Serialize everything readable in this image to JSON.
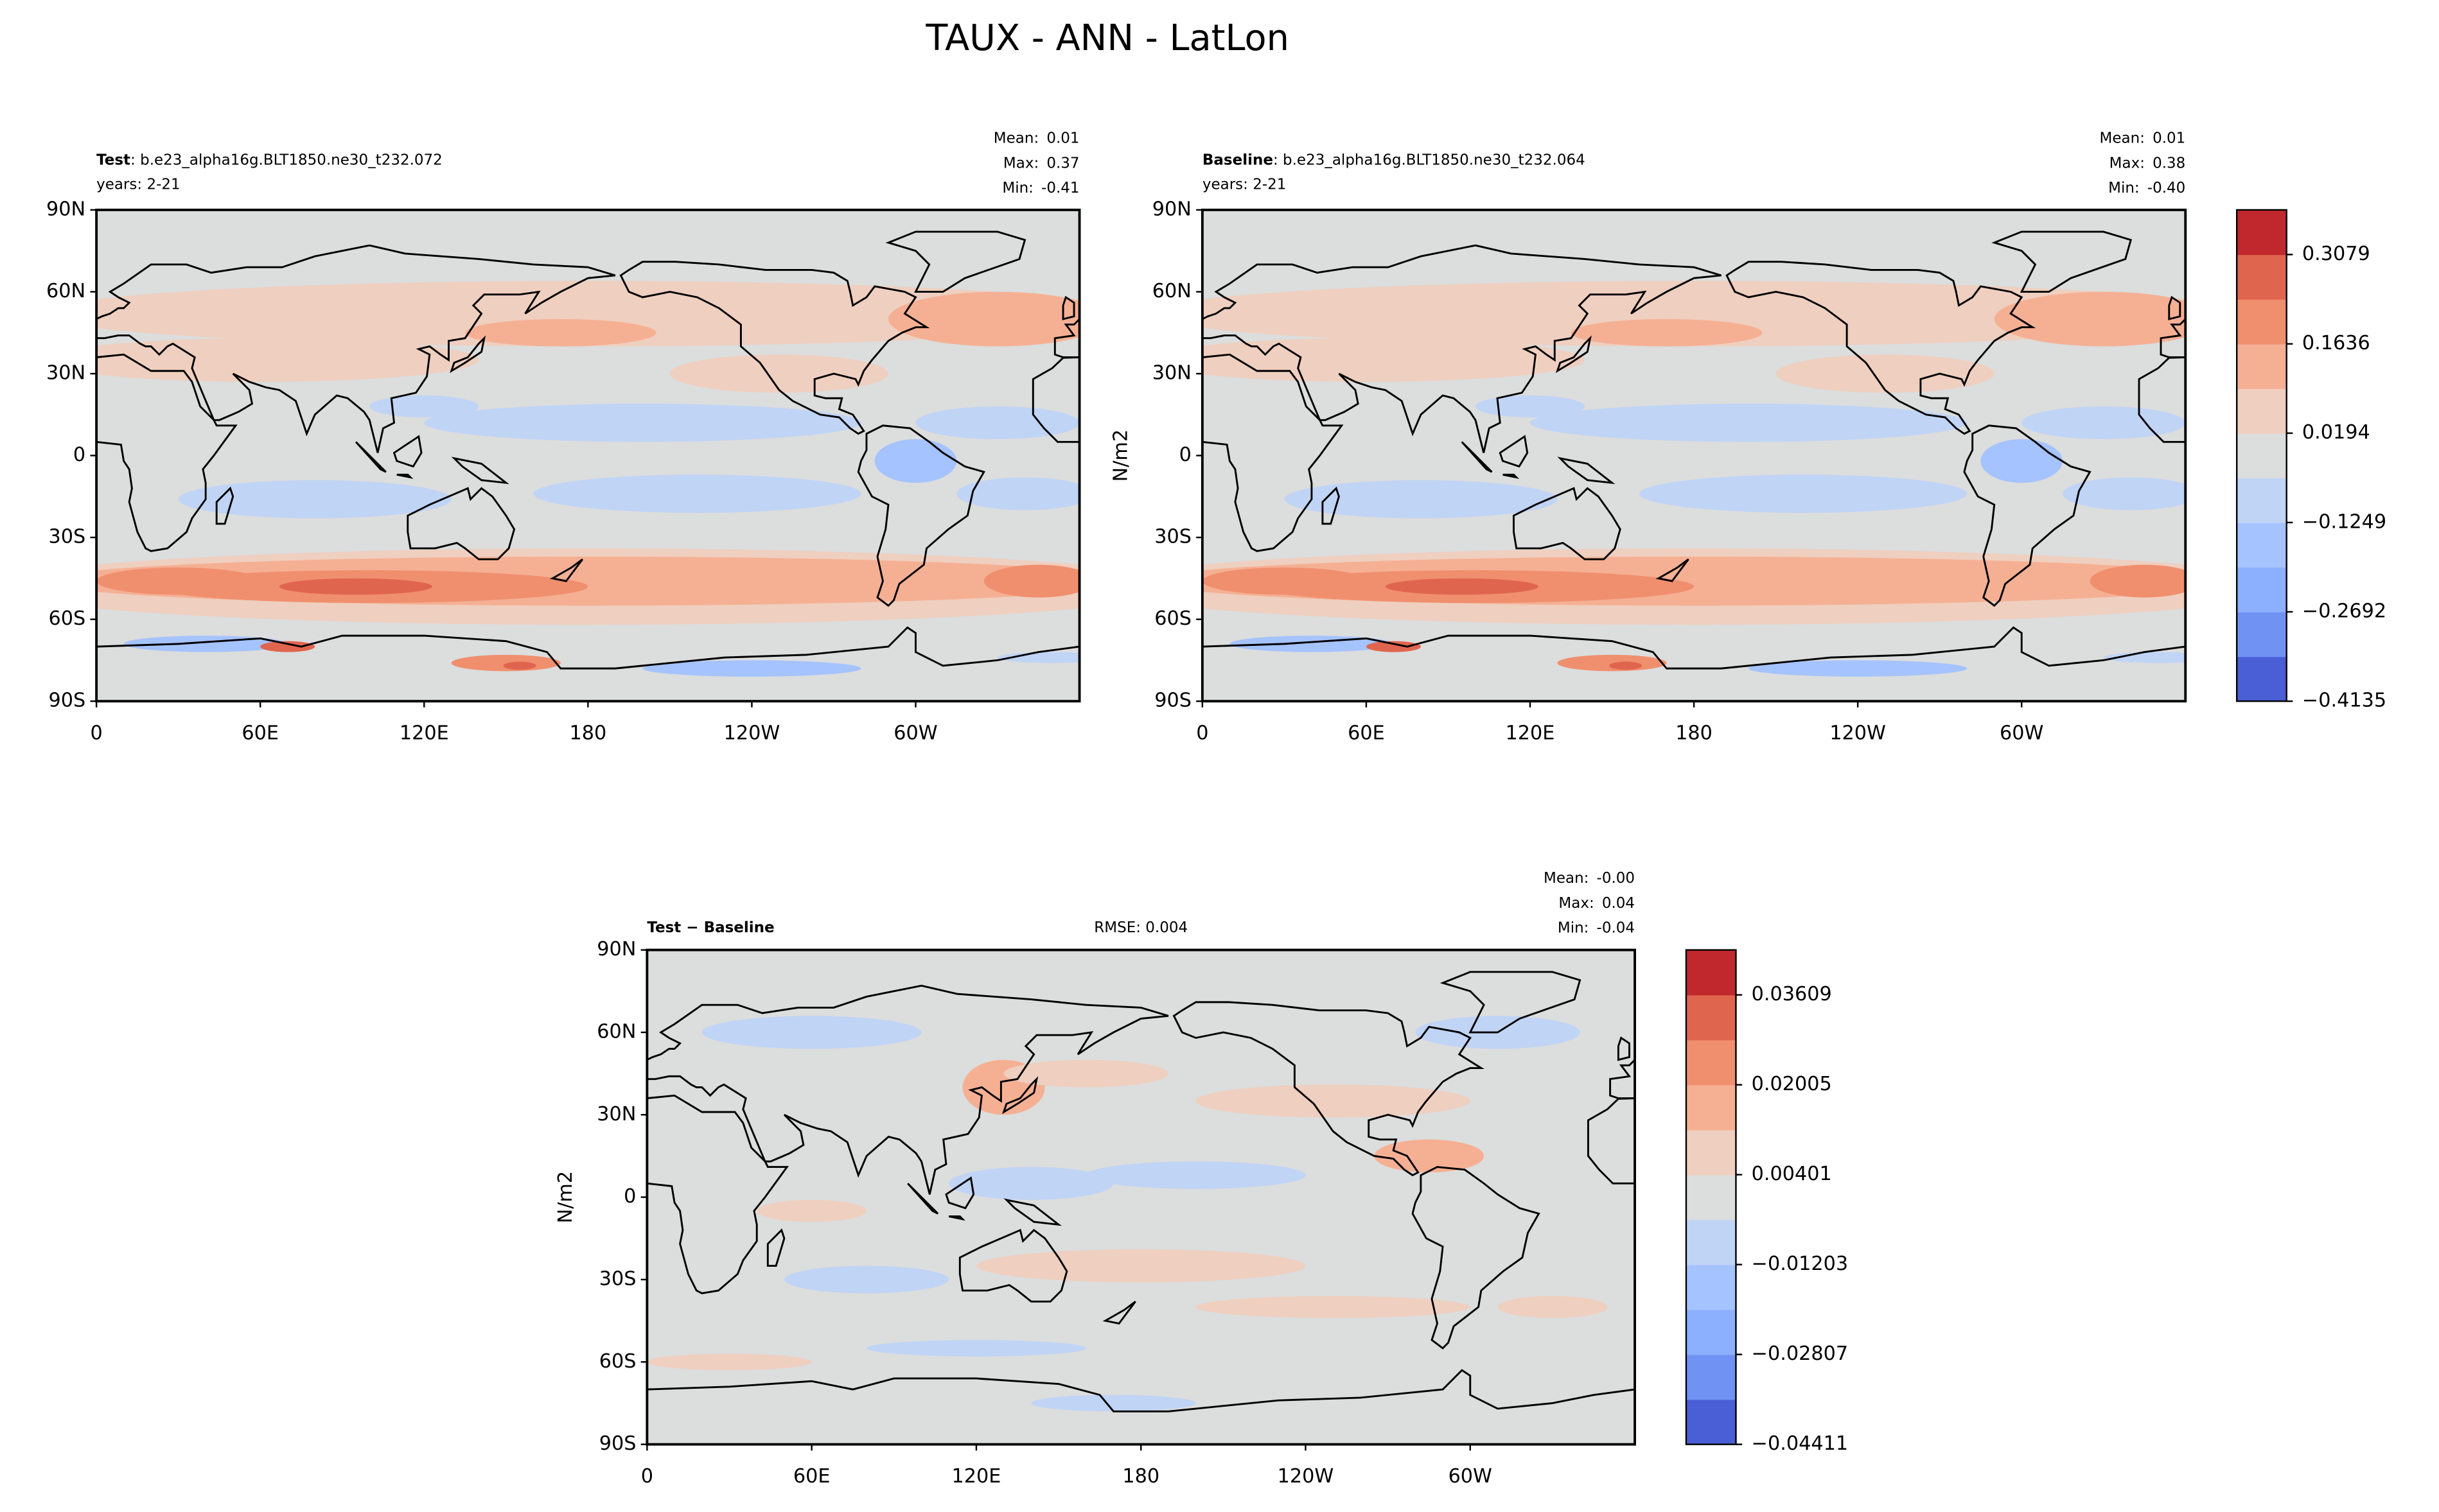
{
  "title": "TAUX - ANN - LatLon",
  "chart_data": [
    {
      "type": "contour",
      "name": "Test",
      "case": ": b.e23_alpha16g.BLT1850.ne30_t232.072",
      "years": "years: 2-21",
      "stats": [
        {
          "name": "Mean:",
          "label": "0.01"
        },
        {
          "name": "Max:",
          "label": "0.37"
        },
        {
          "name": "Min:",
          "label": "-0.41"
        }
      ],
      "xlim": [
        0,
        360
      ],
      "ylim": [
        -90,
        90
      ],
      "xticks": [
        0,
        {
          "value": 60,
          "label": "60E"
        },
        {
          "value": 120,
          "label": "120E"
        },
        180,
        {
          "value": 240,
          "label": "120W"
        },
        {
          "value": 300,
          "label": "60W"
        }
      ],
      "yticks": [
        {
          "value": -90,
          "label": "90S"
        },
        {
          "value": -60,
          "label": "60S"
        },
        {
          "value": -30,
          "label": "30S"
        },
        0,
        {
          "value": 30,
          "label": "30N"
        },
        {
          "value": 60,
          "label": "60N"
        },
        {
          "value": 90,
          "label": "90N"
        }
      ]
    },
    {
      "type": "contour",
      "name": "Baseline",
      "case": ": b.e23_alpha16g.BLT1850.ne30_t232.064",
      "years": "years: 2-21",
      "stats": [
        {
          "name": "Mean:",
          "label": "0.01"
        },
        {
          "name": "Max:",
          "label": "0.38"
        },
        {
          "name": "Min:",
          "label": "-0.40"
        }
      ],
      "ylabel": "N/m2",
      "xlim": [
        0,
        360
      ],
      "ylim": [
        -90,
        90
      ],
      "xticks": [
        0,
        {
          "value": 60,
          "label": "60E"
        },
        {
          "value": 120,
          "label": "120E"
        },
        180,
        {
          "value": 240,
          "label": "120W"
        },
        {
          "value": 300,
          "label": "60W"
        }
      ],
      "yticks": [
        {
          "value": -90,
          "label": "90S"
        },
        {
          "value": -60,
          "label": "60S"
        },
        {
          "value": -30,
          "label": "30S"
        },
        0,
        {
          "value": 30,
          "label": "30N"
        },
        {
          "value": 60,
          "label": "60N"
        },
        {
          "value": 90,
          "label": "90N"
        }
      ],
      "colorbar": {
        "clim": [
          -0.4135,
          0.38
        ],
        "ticks": [
          {
            "value": -0.4135,
            "label": "−0.4135"
          },
          {
            "value": -0.2692,
            "label": "−0.2692"
          },
          {
            "value": -0.1249,
            "label": "−0.1249"
          },
          0.0194,
          0.1636,
          0.3079
        ],
        "colors": [
          "#4a5fd6",
          "#6f92f3",
          "#8caffe",
          "#a5c3fe",
          "#c0d4f5",
          "#dcdddd",
          "#efcfbf",
          "#f5b094",
          "#f08f6e",
          "#e0654f",
          "#c0282d"
        ]
      }
    },
    {
      "type": "contour",
      "name": "Test − Baseline",
      "rmse": "RMSE: 0.004",
      "stats": [
        {
          "name": "Mean:",
          "label": "-0.00"
        },
        {
          "name": "Max:",
          "label": "0.04"
        },
        {
          "name": "Min:",
          "label": "-0.04"
        }
      ],
      "ylabel": "N/m2",
      "xlim": [
        0,
        360
      ],
      "ylim": [
        -90,
        90
      ],
      "xticks": [
        0,
        {
          "value": 60,
          "label": "60E"
        },
        {
          "value": 120,
          "label": "120E"
        },
        180,
        {
          "value": 240,
          "label": "120W"
        },
        {
          "value": 300,
          "label": "60W"
        }
      ],
      "yticks": [
        {
          "value": -90,
          "label": "90S"
        },
        {
          "value": -60,
          "label": "60S"
        },
        {
          "value": -30,
          "label": "30S"
        },
        0,
        {
          "value": 30,
          "label": "30N"
        },
        {
          "value": 60,
          "label": "60N"
        },
        {
          "value": 90,
          "label": "90N"
        }
      ],
      "colorbar": {
        "clim": [
          -0.04411,
          0.04411
        ],
        "ticks": [
          {
            "value": -0.04411,
            "label": "−0.04411"
          },
          {
            "value": -0.02807,
            "label": "−0.02807"
          },
          {
            "value": -0.01203,
            "label": "−0.01203"
          },
          0.00401,
          0.02005,
          0.03609
        ],
        "colors": [
          "#4a5fd6",
          "#6f92f3",
          "#8caffe",
          "#a5c3fe",
          "#c0d4f5",
          "#dcdddd",
          "#efcfbf",
          "#f5b094",
          "#f08f6e",
          "#e0654f",
          "#c0282d"
        ]
      }
    }
  ]
}
